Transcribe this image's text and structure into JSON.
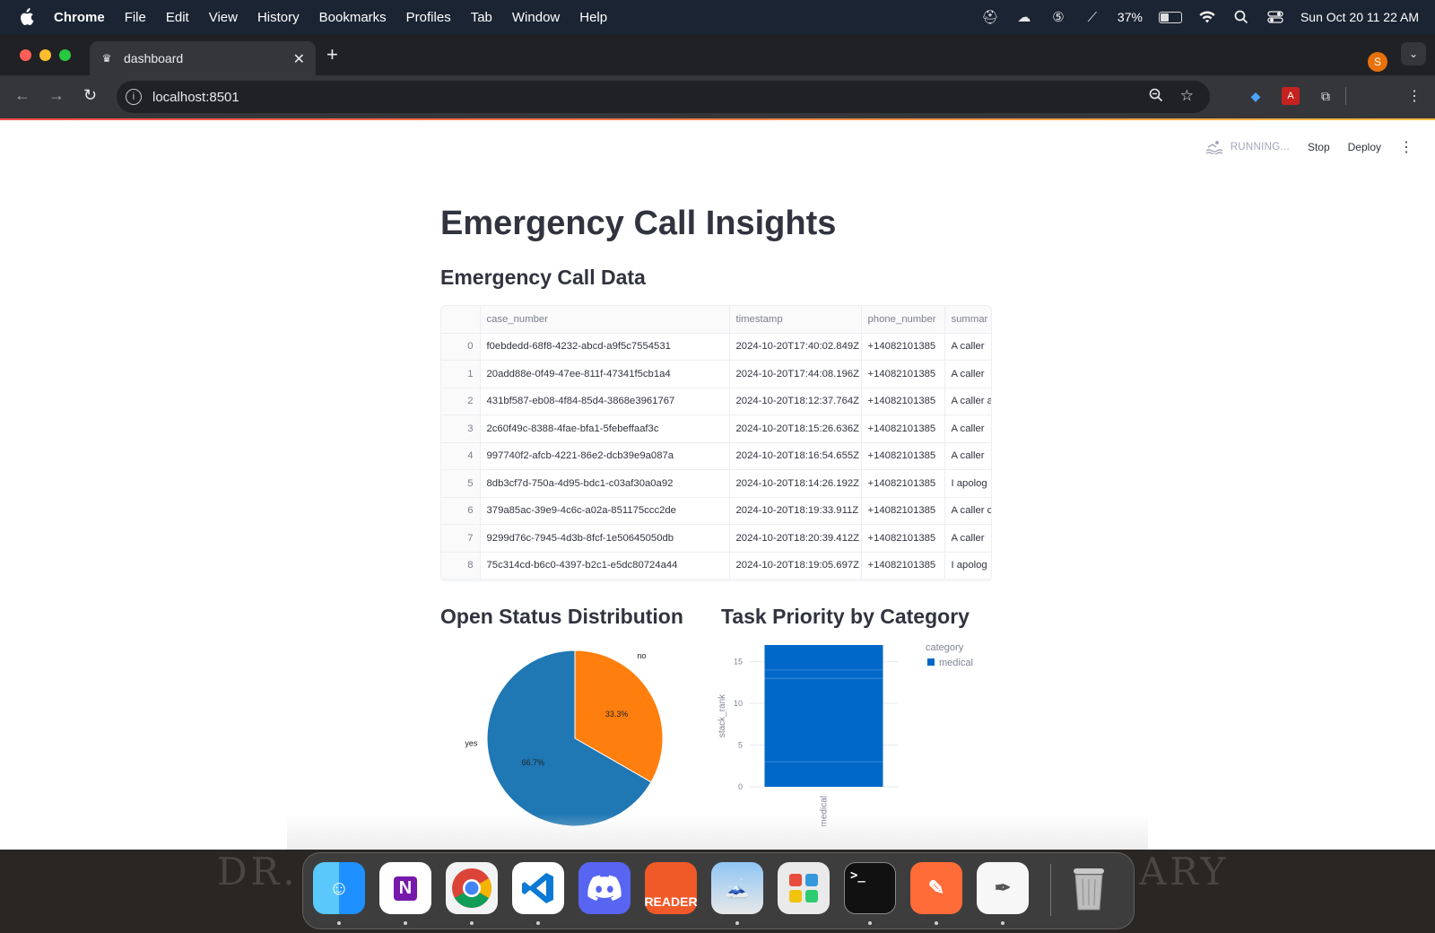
{
  "menubar": {
    "app": "Chrome",
    "items": [
      "File",
      "Edit",
      "View",
      "History",
      "Bookmarks",
      "Profiles",
      "Tab",
      "Window",
      "Help"
    ],
    "battery_pct": "37%",
    "battery_level": 0.37,
    "datetime": "Sun Oct 20  11 22 AM"
  },
  "browser": {
    "tab_title": "dashboard",
    "url": "localhost:8501",
    "profile_initial": "S"
  },
  "app_header": {
    "running": "RUNNING...",
    "stop": "Stop",
    "deploy": "Deploy"
  },
  "page": {
    "title": "Emergency Call Insights",
    "data_heading": "Emergency Call Data",
    "pie_heading": "Open Status Distribution",
    "bar_heading": "Task Priority by Category"
  },
  "table": {
    "columns": [
      "",
      "case_number",
      "timestamp",
      "phone_number",
      "summar"
    ],
    "rows": [
      [
        "0",
        "f0ebdedd-68f8-4232-abcd-a9f5c7554531",
        "2024-10-20T17:40:02.849Z",
        "+14082101385",
        "A caller"
      ],
      [
        "1",
        "20add88e-0f49-47ee-811f-47341f5cb1a4",
        "2024-10-20T17:44:08.196Z",
        "+14082101385",
        "A caller"
      ],
      [
        "2",
        "431bf587-eb08-4f84-85d4-3868e3961767",
        "2024-10-20T18:12:37.764Z",
        "+14082101385",
        "A caller a"
      ],
      [
        "3",
        "2c60f49c-8388-4fae-bfa1-5febeffaaf3c",
        "2024-10-20T18:15:26.636Z",
        "+14082101385",
        "A caller"
      ],
      [
        "4",
        "997740f2-afcb-4221-86e2-dcb39e9a087a",
        "2024-10-20T18:16:54.655Z",
        "+14082101385",
        "A caller"
      ],
      [
        "5",
        "8db3cf7d-750a-4d95-bdc1-c03af30a0a92",
        "2024-10-20T18:14:26.192Z",
        "+14082101385",
        "I apolog"
      ],
      [
        "6",
        "379a85ac-39e9-4c6c-a02a-851175ccc2de",
        "2024-10-20T18:19:33.911Z",
        "+14082101385",
        "A caller c"
      ],
      [
        "7",
        "9299d76c-7945-4d3b-8fcf-1e50645050db",
        "2024-10-20T18:20:39.412Z",
        "+14082101385",
        "A caller"
      ],
      [
        "8",
        "75c314cd-b6c0-4397-b2c1-e5dc80724a44",
        "2024-10-20T18:19:05.697Z",
        "+14082101385",
        "I apolog"
      ]
    ]
  },
  "chart_data": [
    {
      "type": "pie",
      "title": "Open Status Distribution",
      "slices": [
        {
          "label": "no",
          "value": 33.3,
          "pct_label": "33.3%",
          "color": "#ff7f0e"
        },
        {
          "label": "yes",
          "value": 66.7,
          "pct_label": "66.7%",
          "color": "#1f77b4"
        }
      ]
    },
    {
      "type": "bar",
      "title": "Task Priority by Category",
      "categories": [
        "medical"
      ],
      "values": [
        17
      ],
      "ylabel": "stack_rank",
      "xlabel": "",
      "ylim": [
        0,
        17
      ],
      "yticks": [
        "0",
        "5",
        "10",
        "15"
      ],
      "segment_boundaries": [
        3,
        13,
        14
      ],
      "legend": {
        "title": "category",
        "entries": [
          {
            "name": "medical",
            "color": "#0068c9"
          }
        ],
        "placement": "top-right"
      }
    }
  ],
  "dock": {
    "apps": [
      "finder-icon",
      "onenote-icon",
      "chrome-icon",
      "vscode-icon",
      "discord-icon",
      "reader-icon",
      "preview-icon",
      "pinwheel-icon",
      "terminal-icon",
      "postman-icon",
      "textedit-icon",
      "trash-icon"
    ],
    "reader_label": "READER"
  }
}
